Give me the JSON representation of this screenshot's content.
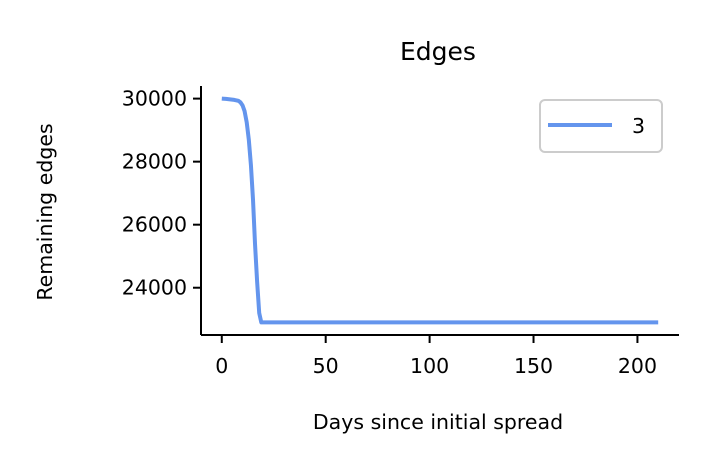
{
  "chart_data": {
    "type": "line",
    "title": "Edges",
    "xlabel": "Days since initial spread",
    "ylabel": "Remaining edges",
    "xlim": [
      -10,
      220
    ],
    "ylim": [
      22500,
      30400
    ],
    "xticks": [
      0,
      50,
      100,
      150,
      200
    ],
    "yticks": [
      24000,
      26000,
      28000,
      30000
    ],
    "grid": false,
    "legend": "top-right",
    "series": [
      {
        "name": "3",
        "color": "#6495ED",
        "x": [
          0,
          2,
          4,
          6,
          8,
          9,
          10,
          11,
          12,
          13,
          14,
          15,
          16,
          17,
          18,
          19,
          20,
          30,
          60,
          100,
          150,
          210
        ],
        "y": [
          30000,
          29990,
          29975,
          29960,
          29930,
          29880,
          29780,
          29600,
          29250,
          28700,
          27900,
          26800,
          25400,
          24200,
          23200,
          22900,
          22900,
          22900,
          22900,
          22900,
          22900,
          22900
        ]
      }
    ]
  }
}
